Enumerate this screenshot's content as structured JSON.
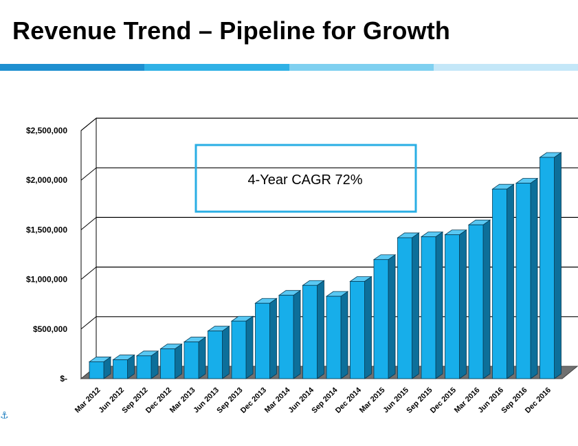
{
  "slide": {
    "title": "Revenue Trend – Pipeline for Growth",
    "accent_colors": [
      "#1e8fd0",
      "#2fb1e6",
      "#7fd0f0",
      "#c4e7f8"
    ]
  },
  "annotation": {
    "text": "4-Year CAGR 72%",
    "border_color": "#29aee4"
  },
  "footer": {
    "icon": "anchor-icon"
  },
  "chart_data": {
    "type": "bar",
    "style": "3d-column",
    "title": "",
    "xlabel": "",
    "ylabel": "",
    "categories": [
      "Mar 2012",
      "Jun 2012",
      "Sep 2012",
      "Dec 2012",
      "Mar 2013",
      "Jun 2013",
      "Sep 2013",
      "Dec 2013",
      "Mar 2014",
      "Jun 2014",
      "Sep 2014",
      "Dec 2014",
      "Mar 2015",
      "Jun 2015",
      "Sep 2015",
      "Dec 2015",
      "Mar 2016",
      "Jun 2016",
      "Sep 2016",
      "Dec 2016"
    ],
    "values": [
      170000,
      190000,
      230000,
      300000,
      370000,
      480000,
      580000,
      760000,
      840000,
      940000,
      830000,
      980000,
      1200000,
      1420000,
      1430000,
      1450000,
      1550000,
      1910000,
      1970000,
      2230000
    ],
    "ylim": [
      0,
      2500000
    ],
    "yticks": [
      0,
      500000,
      1000000,
      1500000,
      2000000,
      2500000
    ],
    "ytick_labels": [
      "$-",
      "$500,000",
      "$1,000,000",
      "$1,500,000",
      "$2,000,000",
      "$2,500,000"
    ],
    "grid": true,
    "legend": "none",
    "bar_color": "#17aeea"
  }
}
